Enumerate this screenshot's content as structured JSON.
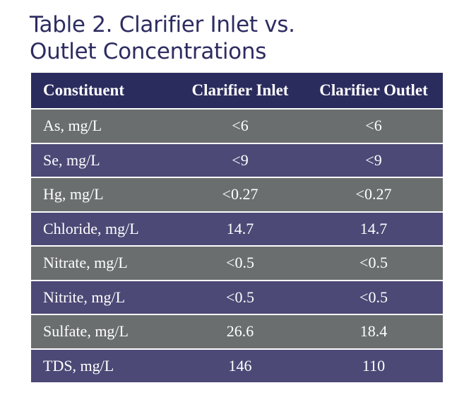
{
  "title_line1": "Table 2. Clarifier Inlet vs.",
  "title_line2": "Outlet Concentrations",
  "columns": [
    "Constituent",
    "Clarifier Inlet",
    "Clarifier Outlet"
  ],
  "rows": [
    [
      "As, mg/L",
      "<6",
      "<6"
    ],
    [
      "Se, mg/L",
      "<9",
      "<9"
    ],
    [
      "Hg, mg/L",
      "<0.27",
      "<0.27"
    ],
    [
      "Chloride, mg/L",
      "14.7",
      "14.7"
    ],
    [
      "Nitrate, mg/L",
      "<0.5",
      "<0.5"
    ],
    [
      "Nitrite, mg/L",
      "<0.5",
      "<0.5"
    ],
    [
      "Sulfate, mg/L",
      "26.6",
      "18.4"
    ],
    [
      "TDS, mg/L",
      "146",
      "110"
    ]
  ],
  "colors": {
    "title": "#2d2c61",
    "header_bg": "#2b2c5e",
    "row_gray": "#6a6e6f",
    "row_purple": "#4c4976"
  }
}
